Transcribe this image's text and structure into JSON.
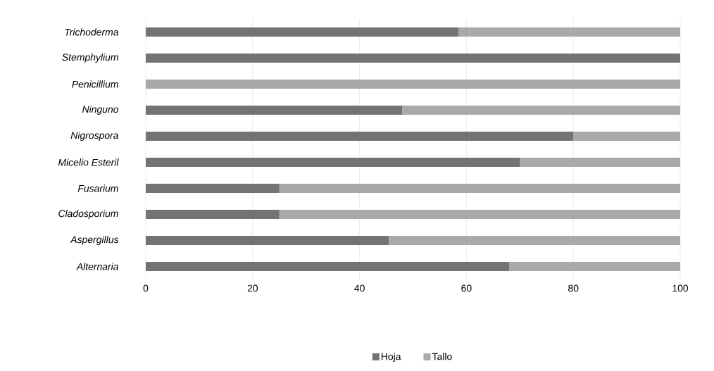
{
  "chart_data": {
    "type": "bar",
    "orientation": "horizontal",
    "stacked": true,
    "categories": [
      "Trichoderma",
      "Stemphylium",
      "Penicillium",
      "Ninguno",
      "Nigrospora",
      "Micelio Esteril",
      "Fusarium",
      "Cladosporium",
      "Aspergillus",
      "Alternaria"
    ],
    "series": [
      {
        "name": "Hoja",
        "color": "#737373",
        "values": [
          58.5,
          100,
          0,
          48,
          80,
          70,
          25,
          25,
          45.5,
          68
        ]
      },
      {
        "name": "Tallo",
        "color": "#a9a9a9",
        "values": [
          41.5,
          0,
          100,
          52,
          20,
          30,
          75,
          75,
          54.5,
          32
        ]
      }
    ],
    "xlim": [
      0,
      100
    ],
    "xticks": [
      0,
      20,
      40,
      60,
      80,
      100
    ],
    "grid": "x",
    "legend": "bottom"
  }
}
